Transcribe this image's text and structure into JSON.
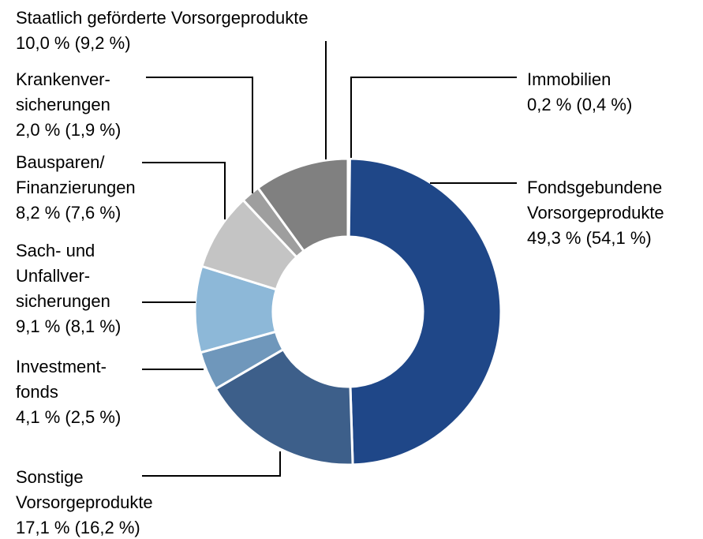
{
  "chart_data": {
    "type": "donut",
    "categories": [
      "Immobilien",
      "Fondsgebundene\nVorsorgeprodukte",
      "Sonstige\nVorsorgeprodukte",
      "Investment-\nfonds",
      "Sach- und\nUnfallver-\nsicherungen",
      "Bausparen/\nFinanzierungen",
      "Krankenver-\nsicherungen",
      "Staatlich geförderte Vorsorgeprodukte"
    ],
    "values": [
      0.2,
      49.3,
      17.1,
      4.1,
      9.1,
      8.2,
      2.0,
      10.0
    ],
    "value_labels": [
      "0,2 % (0,4 %)",
      "49,3 % (54,1 %)",
      "17,1 % (16,2 %)",
      "4,1 % (2,5 %)",
      "9,1 % (8,1 %)",
      "8,2 % (7,6 %)",
      "2,0 % (1,9 %)",
      "10,0 % (9,2 %)"
    ],
    "colors": [
      "#555555",
      "#1f4788",
      "#3d5f8a",
      "#6f97bb",
      "#8db8d8",
      "#c4c4c4",
      "#9e9e9e",
      "#808080"
    ]
  }
}
